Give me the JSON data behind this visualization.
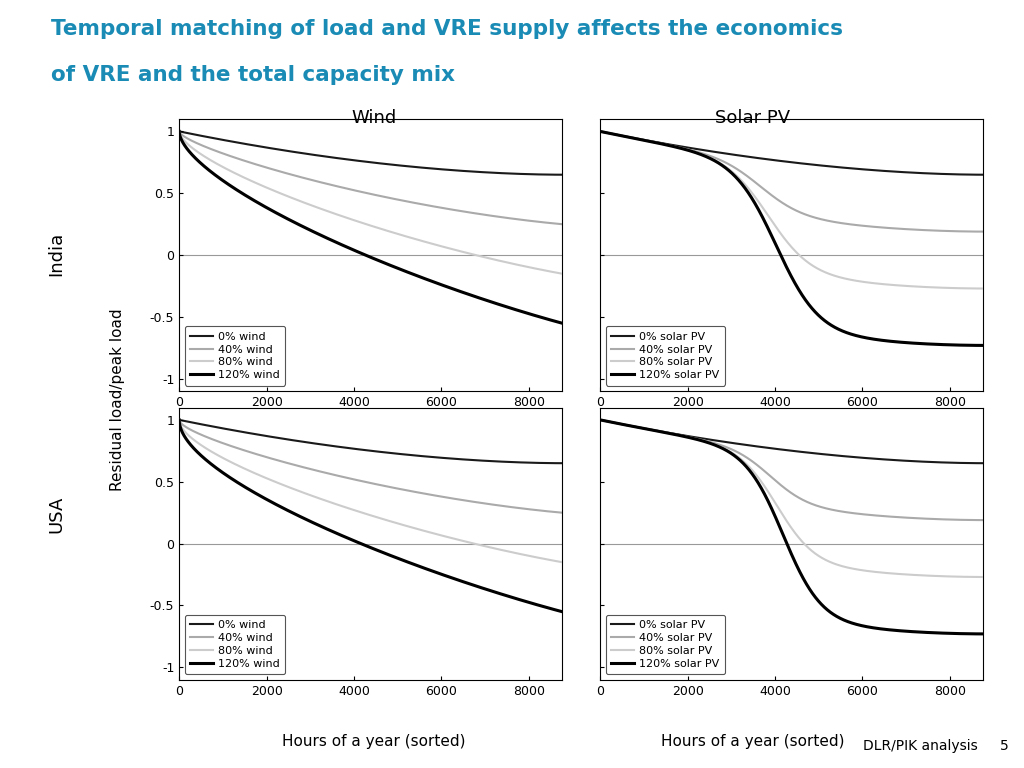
{
  "title_line1": "Temporal matching of load and VRE supply affects the economics",
  "title_line2": "of VRE and the total capacity mix",
  "title_color": "#1A8BB5",
  "col_titles": [
    "Wind",
    "Solar PV"
  ],
  "row_labels": [
    "India",
    "USA"
  ],
  "xlabel": "Hours of a year (sorted)",
  "ylabel": "Residual load/peak load",
  "ylim": [
    -1.1,
    1.1
  ],
  "xlim": [
    0,
    8760
  ],
  "yticks": [
    -1,
    -0.5,
    0,
    0.5,
    1
  ],
  "xticks": [
    0,
    2000,
    4000,
    6000,
    8000
  ],
  "colors_ordered": [
    "#1a1a1a",
    "#aaaaaa",
    "#cccccc",
    "#000000"
  ],
  "lws_ordered": [
    1.5,
    1.5,
    1.5,
    2.2
  ],
  "wind_legend_labels": [
    "0% wind",
    "40% wind",
    "80% wind",
    "120% wind"
  ],
  "solar_legend_labels": [
    "0% solar PV",
    "40% solar PV",
    "80% solar PV",
    "120% solar PV"
  ],
  "footer_text": "DLR/PIK analysis",
  "page_number": "5",
  "background_color": "#ffffff"
}
